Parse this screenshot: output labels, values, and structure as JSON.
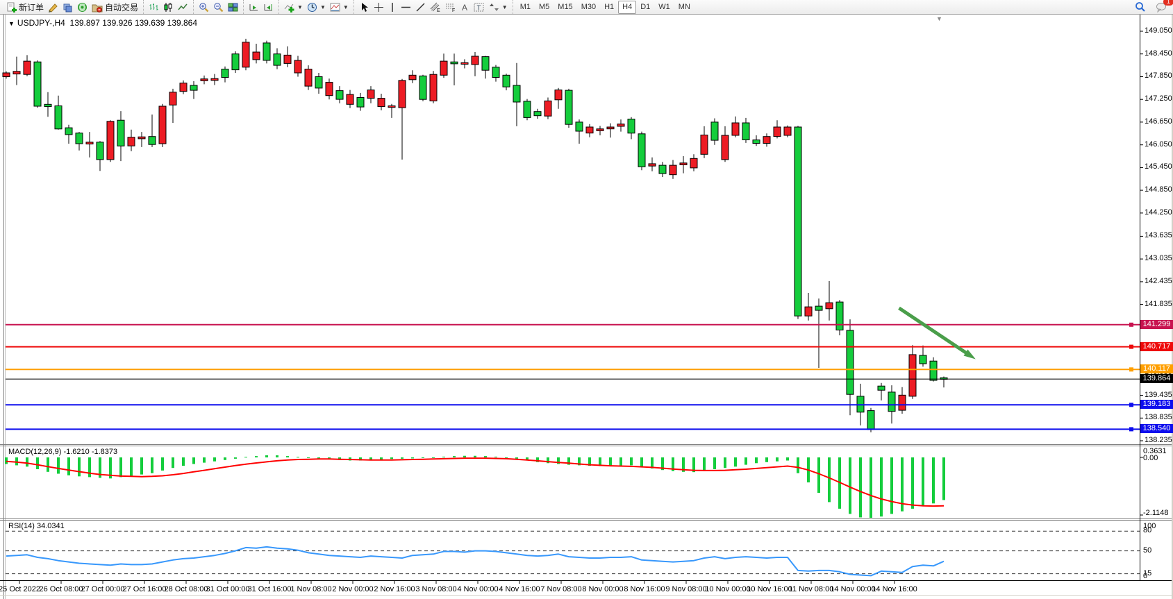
{
  "toolbar": {
    "new_order_label": "新订单",
    "auto_trading_label": "自动交易",
    "timeframes": [
      "M1",
      "M5",
      "M15",
      "M30",
      "H1",
      "H4",
      "D1",
      "W1",
      "MN"
    ],
    "active_timeframe": "H4",
    "notification_count": "1",
    "icons": [
      "new-order-icon",
      "pencil-icon",
      "layers-icon",
      "signal-icon",
      "autotrading-icon",
      "bar-chart-icon",
      "candlestick-icon",
      "line-chart-icon",
      "zoom-in-icon",
      "zoom-out-icon",
      "tile-windows-icon",
      "autoscroll-icon",
      "chart-shift-icon",
      "indicators-icon",
      "periods-icon",
      "templates-icon",
      "cursor-icon",
      "crosshair-icon",
      "vertical-line-icon",
      "horizontal-line-icon",
      "trendline-icon",
      "channel-icon",
      "fibonacci-icon",
      "text-icon",
      "text-label-icon",
      "arrows-icon",
      "search-icon",
      "chat-icon"
    ]
  },
  "chart": {
    "title_symbol": "USDJPY-,H4",
    "title_ohlc": "139.897 139.926 139.639 139.864",
    "current_price_label": "139.864"
  },
  "macd_panel": {
    "label": "MACD(12,26,9)",
    "values": "-1.6210 -1.8373",
    "scale_top": "0.3631",
    "scale_zero": "0.00",
    "scale_bottom": "-2.1148"
  },
  "rsi_panel": {
    "label": "RSI(14)",
    "value": "34.0341",
    "scale": [
      "100",
      "80",
      "50",
      "15",
      "0"
    ]
  },
  "chart_data": {
    "type": "candlestick",
    "symbol": "USDJPY-",
    "timeframe": "H4",
    "title": "USDJPY-,H4 139.897 139.926 139.639 139.864",
    "ohlc_current": {
      "open": 139.897,
      "high": 139.926,
      "low": 139.639,
      "close": 139.864
    },
    "price_axis_ticks": [
      149.05,
      148.45,
      147.85,
      147.25,
      146.65,
      146.05,
      145.45,
      144.85,
      144.25,
      143.635,
      143.035,
      142.435,
      141.835,
      141.235,
      140.635,
      140.035,
      139.435,
      138.835,
      138.235
    ],
    "time_labels": [
      "25 Oct 2022",
      "26 Oct 08:00",
      "27 Oct 00:00",
      "27 Oct 16:00",
      "28 Oct 08:00",
      "31 Oct 00:00",
      "31 Oct 16:00",
      "1 Nov 08:00",
      "2 Nov 00:00",
      "2 Nov 16:00",
      "3 Nov 08:00",
      "4 Nov 00:00",
      "4 Nov 16:00",
      "7 Nov 08:00",
      "8 Nov 00:00",
      "8 Nov 16:00",
      "9 Nov 08:00",
      "10 Nov 00:00",
      "10 Nov 16:00",
      "11 Nov 08:00",
      "14 Nov 00:00",
      "14 Nov 16:00"
    ],
    "levels": [
      {
        "value": 141.299,
        "label": "141.299",
        "color": "#c81450",
        "width": 2
      },
      {
        "value": 140.717,
        "label": "140.717",
        "color": "#ee0a0a",
        "width": 2
      },
      {
        "value": 140.117,
        "label": "140.117",
        "color": "#ff9f00",
        "width": 2
      },
      {
        "value": 139.864,
        "label": "139.864",
        "color": "#000000",
        "width": 1,
        "style": "current-price"
      },
      {
        "value": 139.183,
        "label": "139.183",
        "color": "#0d0dee",
        "width": 2
      },
      {
        "value": 138.54,
        "label": "138.540",
        "color": "#0d0dee",
        "width": 2
      }
    ],
    "candles_format": [
      "bodyTop",
      "bodyBottom",
      "high",
      "low",
      "dir(1=bull-green,0=bear-red)"
    ],
    "candles": [
      [
        147.95,
        147.85,
        147.99,
        147.8,
        0
      ],
      [
        147.99,
        147.92,
        148.38,
        147.63,
        0
      ],
      [
        148.26,
        147.91,
        148.42,
        147.86,
        0
      ],
      [
        148.24,
        147.07,
        148.28,
        147.03,
        1
      ],
      [
        147.12,
        147.06,
        147.44,
        146.79,
        1
      ],
      [
        147.08,
        146.47,
        147.35,
        146.45,
        1
      ],
      [
        146.5,
        146.32,
        146.58,
        146.08,
        1
      ],
      [
        146.36,
        146.08,
        146.39,
        145.9,
        1
      ],
      [
        146.12,
        146.07,
        146.39,
        145.72,
        0
      ],
      [
        146.12,
        145.66,
        146.15,
        145.36,
        1
      ],
      [
        146.67,
        145.66,
        146.7,
        145.6,
        0
      ],
      [
        146.7,
        146.02,
        146.94,
        145.62,
        1
      ],
      [
        146.25,
        146.02,
        146.45,
        145.88,
        0
      ],
      [
        146.26,
        146.21,
        146.39,
        145.99,
        0
      ],
      [
        146.27,
        146.06,
        146.85,
        145.99,
        1
      ],
      [
        147.07,
        146.08,
        147.13,
        145.99,
        0
      ],
      [
        147.44,
        147.1,
        147.53,
        146.63,
        0
      ],
      [
        147.68,
        147.46,
        147.75,
        147.39,
        0
      ],
      [
        147.62,
        147.49,
        147.73,
        147.26,
        1
      ],
      [
        147.79,
        147.74,
        147.88,
        147.65,
        0
      ],
      [
        147.8,
        147.75,
        147.92,
        147.63,
        0
      ],
      [
        148.05,
        147.83,
        148.12,
        147.7,
        1
      ],
      [
        148.45,
        148.03,
        148.52,
        147.95,
        1
      ],
      [
        148.76,
        148.1,
        148.85,
        148.02,
        0
      ],
      [
        148.5,
        148.3,
        148.72,
        148.2,
        0
      ],
      [
        148.74,
        148.28,
        148.8,
        148.2,
        1
      ],
      [
        148.45,
        148.15,
        148.6,
        148.05,
        1
      ],
      [
        148.42,
        148.2,
        148.65,
        148.1,
        0
      ],
      [
        148.28,
        147.95,
        148.4,
        147.85,
        0
      ],
      [
        148.05,
        147.6,
        148.15,
        147.5,
        0
      ],
      [
        147.85,
        147.55,
        147.95,
        147.4,
        1
      ],
      [
        147.7,
        147.35,
        147.8,
        147.25,
        0
      ],
      [
        147.48,
        147.25,
        147.6,
        147.15,
        1
      ],
      [
        147.38,
        147.12,
        147.5,
        147.02,
        0
      ],
      [
        147.3,
        147.05,
        147.42,
        146.95,
        1
      ],
      [
        147.5,
        147.28,
        147.6,
        147.15,
        0
      ],
      [
        147.28,
        147.06,
        147.4,
        146.96,
        0
      ],
      [
        147.08,
        147.04,
        147.13,
        146.76,
        0
      ],
      [
        147.75,
        147.03,
        147.79,
        145.66,
        0
      ],
      [
        147.89,
        147.77,
        148.02,
        147.68,
        0
      ],
      [
        147.87,
        147.25,
        147.9,
        147.2,
        1
      ],
      [
        147.91,
        147.21,
        148.0,
        147.15,
        0
      ],
      [
        148.26,
        147.89,
        148.46,
        147.82,
        0
      ],
      [
        148.24,
        148.19,
        148.46,
        147.62,
        1
      ],
      [
        148.22,
        148.18,
        148.31,
        148.07,
        0
      ],
      [
        148.39,
        148.17,
        148.5,
        147.86,
        0
      ],
      [
        148.38,
        148.02,
        148.4,
        147.8,
        1
      ],
      [
        148.1,
        147.83,
        148.16,
        147.72,
        1
      ],
      [
        147.89,
        147.58,
        147.93,
        147.49,
        1
      ],
      [
        147.62,
        147.18,
        148.21,
        146.54,
        1
      ],
      [
        147.2,
        146.77,
        147.26,
        146.7,
        1
      ],
      [
        146.93,
        146.82,
        147.0,
        146.74,
        1
      ],
      [
        147.21,
        146.81,
        147.3,
        146.73,
        0
      ],
      [
        147.5,
        147.24,
        147.55,
        147.0,
        0
      ],
      [
        147.49,
        146.59,
        147.53,
        146.5,
        1
      ],
      [
        146.65,
        146.41,
        146.72,
        146.08,
        1
      ],
      [
        146.52,
        146.36,
        146.6,
        146.25,
        0
      ],
      [
        146.47,
        146.42,
        146.55,
        146.3,
        0
      ],
      [
        146.52,
        146.47,
        146.62,
        146.24,
        0
      ],
      [
        146.6,
        146.54,
        146.72,
        146.4,
        0
      ],
      [
        146.73,
        146.36,
        146.78,
        146.2,
        1
      ],
      [
        146.34,
        145.47,
        146.4,
        145.38,
        1
      ],
      [
        145.55,
        145.49,
        145.72,
        145.35,
        0
      ],
      [
        145.51,
        145.29,
        145.6,
        145.2,
        1
      ],
      [
        145.51,
        145.26,
        145.65,
        145.15,
        0
      ],
      [
        145.57,
        145.52,
        145.75,
        145.3,
        0
      ],
      [
        145.69,
        145.44,
        145.8,
        145.35,
        0
      ],
      [
        146.31,
        145.8,
        146.54,
        145.7,
        0
      ],
      [
        146.65,
        146.17,
        146.75,
        146.05,
        1
      ],
      [
        146.3,
        145.66,
        146.54,
        145.6,
        0
      ],
      [
        146.63,
        146.3,
        146.8,
        146.25,
        0
      ],
      [
        146.63,
        146.18,
        146.76,
        146.1,
        1
      ],
      [
        146.18,
        146.09,
        146.3,
        146.02,
        1
      ],
      [
        146.27,
        146.09,
        146.35,
        146.0,
        0
      ],
      [
        146.52,
        146.27,
        146.7,
        146.22,
        0
      ],
      [
        146.52,
        146.3,
        146.56,
        146.25,
        0
      ],
      [
        146.52,
        141.53,
        146.55,
        141.45,
        1
      ],
      [
        141.77,
        141.53,
        142.14,
        141.41,
        0
      ],
      [
        141.79,
        141.68,
        141.99,
        140.16,
        1
      ],
      [
        141.88,
        141.72,
        142.45,
        141.41,
        0
      ],
      [
        141.9,
        141.16,
        141.95,
        141.02,
        1
      ],
      [
        141.15,
        139.46,
        141.44,
        138.91,
        1
      ],
      [
        139.41,
        138.99,
        139.74,
        138.64,
        1
      ],
      [
        139.03,
        138.53,
        139.1,
        138.46,
        1
      ],
      [
        139.68,
        139.57,
        139.76,
        139.3,
        1
      ],
      [
        139.52,
        139.01,
        139.7,
        138.69,
        1
      ],
      [
        139.44,
        139.04,
        139.65,
        138.95,
        0
      ],
      [
        140.51,
        139.41,
        140.76,
        139.34,
        0
      ],
      [
        140.49,
        140.27,
        140.75,
        140.19,
        1
      ],
      [
        140.34,
        139.83,
        140.44,
        139.8,
        1
      ],
      [
        139.9,
        139.86,
        139.93,
        139.64,
        1
      ]
    ],
    "macd": {
      "label": "MACD(12,26,9)",
      "current_macd": -1.621,
      "current_signal": -1.8373,
      "scale": {
        "top": 0.3631,
        "zero": 0.0,
        "bottom": -2.1148
      },
      "histogram": [
        -0.25,
        -0.3,
        -0.35,
        -0.45,
        -0.55,
        -0.62,
        -0.68,
        -0.72,
        -0.75,
        -0.78,
        -0.8,
        -0.75,
        -0.7,
        -0.65,
        -0.6,
        -0.5,
        -0.4,
        -0.32,
        -0.25,
        -0.2,
        -0.15,
        -0.1,
        -0.05,
        0.02,
        0.05,
        0.08,
        0.08,
        0.05,
        0.02,
        -0.02,
        -0.05,
        -0.08,
        -0.1,
        -0.12,
        -0.12,
        -0.1,
        -0.08,
        -0.06,
        -0.05,
        -0.04,
        -0.02,
        0.0,
        0.03,
        0.05,
        0.06,
        0.06,
        0.05,
        0.03,
        0.0,
        -0.05,
        -0.12,
        -0.18,
        -0.22,
        -0.25,
        -0.28,
        -0.3,
        -0.32,
        -0.33,
        -0.33,
        -0.32,
        -0.3,
        -0.35,
        -0.42,
        -0.48,
        -0.52,
        -0.55,
        -0.56,
        -0.52,
        -0.45,
        -0.4,
        -0.35,
        -0.28,
        -0.22,
        -0.18,
        -0.15,
        -0.12,
        -0.6,
        -0.95,
        -1.35,
        -1.7,
        -1.95,
        -2.15,
        -2.28,
        -2.32,
        -2.25,
        -2.15,
        -2.05,
        -1.95,
        -1.85,
        -1.75,
        -1.62
      ],
      "signal": [
        -0.15,
        -0.18,
        -0.22,
        -0.28,
        -0.35,
        -0.42,
        -0.48,
        -0.54,
        -0.6,
        -0.65,
        -0.68,
        -0.71,
        -0.72,
        -0.73,
        -0.72,
        -0.7,
        -0.66,
        -0.61,
        -0.55,
        -0.49,
        -0.43,
        -0.37,
        -0.31,
        -0.26,
        -0.21,
        -0.17,
        -0.13,
        -0.1,
        -0.08,
        -0.07,
        -0.06,
        -0.06,
        -0.07,
        -0.08,
        -0.09,
        -0.1,
        -0.1,
        -0.1,
        -0.09,
        -0.08,
        -0.07,
        -0.06,
        -0.05,
        -0.04,
        -0.03,
        -0.03,
        -0.03,
        -0.04,
        -0.05,
        -0.07,
        -0.1,
        -0.13,
        -0.16,
        -0.19,
        -0.22,
        -0.25,
        -0.28,
        -0.3,
        -0.32,
        -0.33,
        -0.34,
        -0.36,
        -0.38,
        -0.41,
        -0.44,
        -0.47,
        -0.49,
        -0.5,
        -0.5,
        -0.49,
        -0.47,
        -0.45,
        -0.42,
        -0.39,
        -0.36,
        -0.33,
        -0.38,
        -0.48,
        -0.62,
        -0.78,
        -0.95,
        -1.13,
        -1.3,
        -1.45,
        -1.58,
        -1.68,
        -1.76,
        -1.81,
        -1.84,
        -1.85,
        -1.84
      ]
    },
    "rsi": {
      "label": "RSI(14)",
      "current": 34.0341,
      "levels": [
        80,
        50,
        15
      ],
      "range": [
        0,
        100
      ],
      "values": [
        42,
        43,
        44,
        40,
        38,
        35,
        33,
        31,
        30,
        29,
        28,
        30,
        29,
        29,
        30,
        33,
        36,
        38,
        39,
        41,
        43,
        46,
        50,
        55,
        54,
        56,
        54,
        53,
        51,
        47,
        45,
        43,
        42,
        41,
        40,
        42,
        41,
        40,
        39,
        43,
        44,
        45,
        49,
        49,
        48,
        50,
        50,
        49,
        47,
        45,
        43,
        42,
        43,
        45,
        41,
        40,
        39,
        39,
        40,
        40,
        41,
        36,
        35,
        34,
        33,
        34,
        35,
        39,
        41,
        38,
        40,
        41,
        40,
        39,
        40,
        40,
        20,
        19,
        20,
        20,
        18,
        14,
        13,
        12,
        19,
        18,
        17,
        26,
        28,
        27,
        34
      ]
    },
    "annotation_arrow": {
      "from_bar": 85.7,
      "from_price": 141.74,
      "to_bar": 92.5,
      "to_price": 140.49,
      "color": "#4a9e4a"
    },
    "colors": {
      "bull": "#14cd3c",
      "bear": "#ed1c24",
      "wick": "#000000",
      "macd_hist": "#14cd3c",
      "macd_signal": "#ff0000",
      "rsi_line": "#3898fc"
    }
  }
}
